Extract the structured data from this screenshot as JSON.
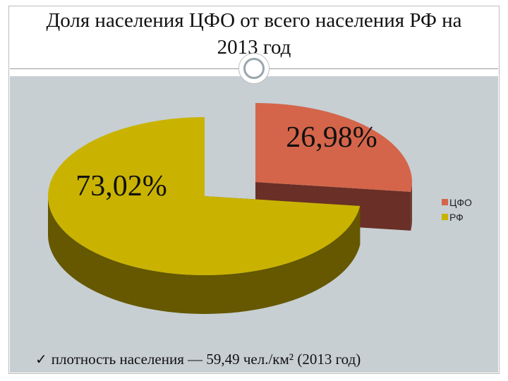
{
  "title": {
    "line1": "Доля населения ЦФО от всего населения РФ на",
    "line2": "2013 год"
  },
  "chart_data": {
    "type": "pie",
    "style": "3d-exploded",
    "categories": [
      "ЦФО",
      "РФ"
    ],
    "values": [
      26.98,
      73.02
    ],
    "data_labels": [
      "26,98%",
      "73,02%"
    ],
    "colors": [
      "#d4654a",
      "#c9b300"
    ],
    "side_colors": [
      "#6a2f26",
      "#655800"
    ],
    "legend_position": "right",
    "legend": [
      "ЦФО",
      "РФ"
    ]
  },
  "footnote": {
    "check_icon": "checkmark-icon",
    "text": "плотность населения — 59,49 чел./км² (2013 год)"
  }
}
